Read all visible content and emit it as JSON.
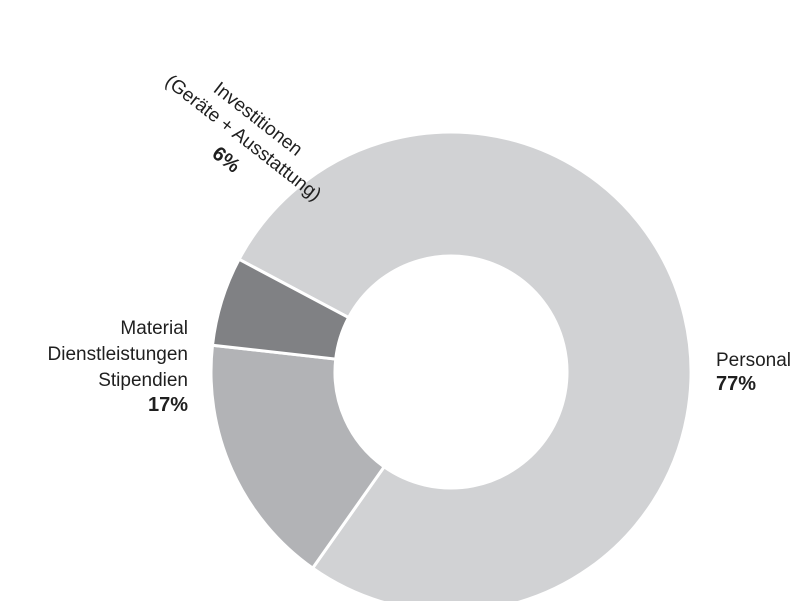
{
  "chart_data": {
    "type": "pie",
    "donut": true,
    "slices": [
      {
        "label_lines": [
          "Personal"
        ],
        "value": 77,
        "value_label": "77%",
        "color": "#d1d2d4"
      },
      {
        "label_lines": [
          "Material",
          "Dienstleistungen",
          "Stipendien"
        ],
        "value": 17,
        "value_label": "17%",
        "color": "#b2b3b6"
      },
      {
        "label_lines": [
          "Investitionen",
          "(Geräte + Ausstattung)"
        ],
        "value": 6,
        "value_label": "6%",
        "color": "#808184"
      }
    ],
    "separator_color": "#ffffff",
    "legend": "none"
  }
}
